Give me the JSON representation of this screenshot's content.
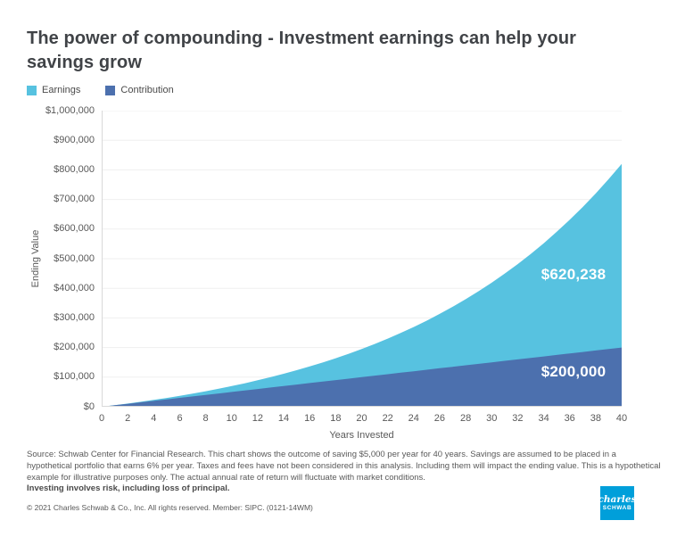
{
  "title": "The power of compounding - Investment earnings can help your savings grow",
  "legend": [
    {
      "label": "Earnings",
      "color": "#57C2E0"
    },
    {
      "label": "Contribution",
      "color": "#4C70AE"
    }
  ],
  "data_labels": {
    "earnings": "$620,238",
    "contribution": "$200,000"
  },
  "chart_data": {
    "type": "area",
    "stacked": true,
    "title": "The power of compounding - Investment earnings can help your savings grow",
    "xlabel": "Years Invested",
    "ylabel": "Ending Value",
    "ylim": [
      0,
      1000000
    ],
    "xlim": [
      0,
      40
    ],
    "grid": true,
    "legend_position": "top-left",
    "grid_color": "#efefef",
    "axis_color": "#d9d9d9",
    "ytick_labels": [
      "$0",
      "$100,000",
      "$200,000",
      "$300,000",
      "$400,000",
      "$500,000",
      "$600,000",
      "$700,000",
      "$800,000",
      "$900,000",
      "$1,000,000"
    ],
    "xtick_values": [
      0,
      2,
      4,
      6,
      8,
      10,
      12,
      14,
      16,
      18,
      20,
      22,
      24,
      26,
      28,
      30,
      32,
      34,
      36,
      38,
      40
    ],
    "x": [
      0,
      1,
      2,
      3,
      4,
      5,
      6,
      7,
      8,
      9,
      10,
      11,
      12,
      13,
      14,
      15,
      16,
      17,
      18,
      19,
      20,
      21,
      22,
      23,
      24,
      25,
      26,
      27,
      28,
      29,
      30,
      31,
      32,
      33,
      34,
      35,
      36,
      37,
      38,
      39,
      40
    ],
    "series": [
      {
        "name": "Contribution",
        "color": "#4C70AE",
        "values": [
          0,
          5000,
          10000,
          15000,
          20000,
          25000,
          30000,
          35000,
          40000,
          45000,
          50000,
          55000,
          60000,
          65000,
          70000,
          75000,
          80000,
          85000,
          90000,
          95000,
          100000,
          105000,
          110000,
          115000,
          120000,
          125000,
          130000,
          135000,
          140000,
          145000,
          150000,
          155000,
          160000,
          165000,
          170000,
          175000,
          180000,
          185000,
          190000,
          195000,
          200000
        ]
      },
      {
        "name": "Earnings",
        "color": "#57C2E0",
        "values": [
          0,
          300,
          918,
          1873,
          3185,
          4877,
          6969,
          9487,
          12457,
          15904,
          19858,
          24350,
          29411,
          35075,
          41380,
          48363,
          56064,
          64528,
          73800,
          83928,
          94964,
          106961,
          119979,
          134078,
          149323,
          165782,
          183529,
          202641,
          223199,
          245291,
          269008,
          294449,
          321716,
          350919,
          382174,
          415604,
          451341,
          489521,
          530292,
          573810,
          620238
        ]
      }
    ],
    "annotations": [
      {
        "text": "$620,238",
        "series": "Earnings"
      },
      {
        "text": "$200,000",
        "series": "Contribution"
      }
    ]
  },
  "footnote": {
    "source_text": "Source:  Schwab Center for Financial Research.  This chart shows the outcome of saving $5,000 per year for 40 years.  Savings are assumed to be placed in a hypothetical portfolio that earns 6% per year.  Taxes and fees have not been considered in this analysis.  Including them will impact the ending value.  This is a hypothetical example for illustrative purposes only.  The actual annual rate of return will fluctuate with market conditions.",
    "risk_text": "Investing involves risk, including loss of principal.",
    "copyright": "© 2021 Charles Schwab & Co., Inc. All rights reserved. Member: SIPC. (0121-14WM)"
  },
  "logo": {
    "line1": "charles",
    "line2": "SCHWAB",
    "color": "#009FDA"
  }
}
